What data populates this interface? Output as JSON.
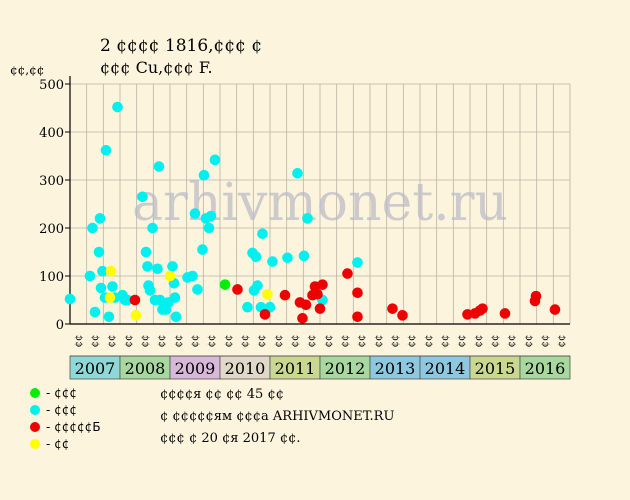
{
  "chart_data": {
    "type": "scatter",
    "title": "2 ¢¢¢¢ 1816,¢¢¢ ¢",
    "subtitle": "¢¢¢ Cu,¢¢¢ F.",
    "ylabel": "¢¢,¢¢",
    "ylim": [
      0,
      500
    ],
    "yticks": [
      0,
      100,
      200,
      300,
      400,
      500
    ],
    "watermark": "arhivmonet.ru",
    "years": [
      "2007",
      "2008",
      "2009",
      "2010",
      "2011",
      "2012",
      "2013",
      "2014",
      "2015",
      "2016"
    ],
    "year_colors": [
      "#8fd8d8",
      "#a8d8a0",
      "#d8b8d8",
      "#e0d8c8",
      "#c8d890",
      "#a8d8a0",
      "#8ec8e0",
      "#8ec8e0",
      "#c8d890",
      "#a8d8a0"
    ],
    "quarter_labels": [
      "¢¢",
      "¢¢",
      "¢¢"
    ],
    "grid": true,
    "series": [
      {
        "name": "¢¢¢",
        "color": "#00ee00",
        "points": [
          [
            2010.1,
            82
          ]
        ]
      },
      {
        "name": "¢¢¢",
        "color": "#00f0f0",
        "points": [
          [
            2007.0,
            52
          ],
          [
            2007.4,
            100
          ],
          [
            2007.45,
            200
          ],
          [
            2007.5,
            25
          ],
          [
            2007.58,
            150
          ],
          [
            2007.6,
            220
          ],
          [
            2007.62,
            75
          ],
          [
            2007.65,
            110
          ],
          [
            2007.7,
            55
          ],
          [
            2007.72,
            362
          ],
          [
            2007.78,
            15
          ],
          [
            2007.85,
            78
          ],
          [
            2007.9,
            55
          ],
          [
            2007.95,
            452
          ],
          [
            2008.05,
            60
          ],
          [
            2008.1,
            50
          ],
          [
            2008.15,
            50
          ],
          [
            2008.45,
            265
          ],
          [
            2008.52,
            150
          ],
          [
            2008.55,
            120
          ],
          [
            2008.57,
            80
          ],
          [
            2008.6,
            70
          ],
          [
            2008.65,
            200
          ],
          [
            2008.7,
            50
          ],
          [
            2008.75,
            115
          ],
          [
            2008.78,
            328
          ],
          [
            2008.8,
            50
          ],
          [
            2008.85,
            30
          ],
          [
            2008.88,
            40
          ],
          [
            2008.92,
            30
          ],
          [
            2008.97,
            45
          ],
          [
            2009.05,
            120
          ],
          [
            2009.08,
            85
          ],
          [
            2009.1,
            55
          ],
          [
            2009.12,
            15
          ],
          [
            2009.35,
            97
          ],
          [
            2009.45,
            100
          ],
          [
            2009.5,
            230
          ],
          [
            2009.55,
            72
          ],
          [
            2009.65,
            155
          ],
          [
            2009.68,
            310
          ],
          [
            2009.72,
            220
          ],
          [
            2009.78,
            200
          ],
          [
            2009.82,
            225
          ],
          [
            2009.9,
            342
          ],
          [
            2010.55,
            35
          ],
          [
            2010.65,
            148
          ],
          [
            2010.68,
            70
          ],
          [
            2010.72,
            140
          ],
          [
            2010.75,
            80
          ],
          [
            2010.82,
            35
          ],
          [
            2010.85,
            188
          ],
          [
            2011.0,
            35
          ],
          [
            2011.05,
            130
          ],
          [
            2011.35,
            138
          ],
          [
            2011.55,
            314
          ],
          [
            2011.68,
            142
          ],
          [
            2011.75,
            220
          ],
          [
            2012.05,
            50
          ],
          [
            2012.75,
            128
          ]
        ]
      },
      {
        "name": "¢¢¢¢¢Б",
        "color": "#ee0000",
        "points": [
          [
            2008.3,
            50
          ],
          [
            2010.35,
            72
          ],
          [
            2010.9,
            20
          ],
          [
            2011.3,
            60
          ],
          [
            2011.6,
            45
          ],
          [
            2011.65,
            12
          ],
          [
            2011.72,
            40
          ],
          [
            2011.85,
            60
          ],
          [
            2011.9,
            78
          ],
          [
            2011.95,
            62
          ],
          [
            2012.0,
            32
          ],
          [
            2012.05,
            82
          ],
          [
            2012.55,
            105
          ],
          [
            2012.75,
            65
          ],
          [
            2012.75,
            15
          ],
          [
            2013.45,
            32
          ],
          [
            2013.65,
            18
          ],
          [
            2014.95,
            20
          ],
          [
            2015.1,
            22
          ],
          [
            2015.2,
            28
          ],
          [
            2015.25,
            32
          ],
          [
            2015.7,
            22
          ],
          [
            2016.3,
            48
          ],
          [
            2016.32,
            58
          ],
          [
            2016.7,
            30
          ]
        ]
      },
      {
        "name": "¢¢",
        "color": "#ffff00",
        "points": [
          [
            2007.82,
            110
          ],
          [
            2007.8,
            55
          ],
          [
            2008.32,
            18
          ],
          [
            2009.0,
            100
          ],
          [
            2010.95,
            62
          ]
        ]
      }
    ],
    "legend": [
      {
        "label": "- ¢¢¢",
        "color": "#00ee00"
      },
      {
        "label": "- ¢¢¢",
        "color": "#00f0f0"
      },
      {
        "label": "- ¢¢¢¢¢Б",
        "color": "#ee0000"
      },
      {
        "label": "- ¢¢",
        "color": "#ffff00"
      }
    ],
    "notes": [
      "¢¢¢¢я ¢¢ ¢¢ 45 ¢¢",
      "¢ ¢¢¢¢¢ям ¢¢¢а ARHIVMONET.RU",
      "¢¢¢ ¢ 20 ¢я 2017 ¢¢."
    ]
  }
}
